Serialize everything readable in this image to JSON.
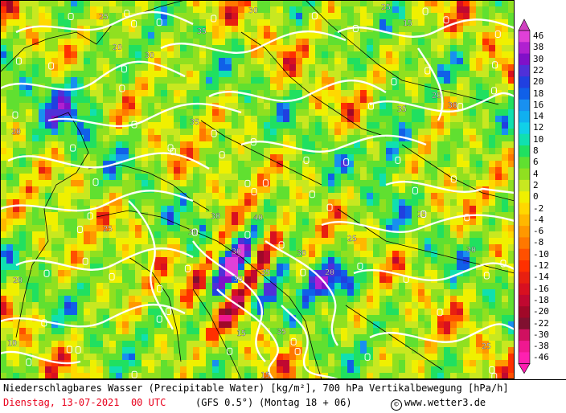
{
  "map": {
    "contour_labels": [
      "25",
      "20",
      "30",
      "35",
      "30",
      "25",
      "15",
      "20",
      "30",
      "35",
      "40",
      "30",
      "35",
      "30",
      "25",
      "20",
      "15",
      "10",
      "30",
      "35",
      "25",
      "30",
      "20",
      "25",
      "30",
      "35",
      "15",
      "20",
      "25",
      "30"
    ]
  },
  "legend": {
    "top_arrow_color": "#d040c0",
    "bottom_arrow_color": "#ff1cb0",
    "entries": [
      {
        "label": "46",
        "color": "#e040d8"
      },
      {
        "label": "38",
        "color": "#b020d0"
      },
      {
        "label": "30",
        "color": "#8010c8"
      },
      {
        "label": "22",
        "color": "#5030d8"
      },
      {
        "label": "20",
        "color": "#2040e0"
      },
      {
        "label": "18",
        "color": "#1060e8"
      },
      {
        "label": "16",
        "color": "#1890f0"
      },
      {
        "label": "14",
        "color": "#10b0f0"
      },
      {
        "label": "12",
        "color": "#10d0e8"
      },
      {
        "label": "10",
        "color": "#10e0b0"
      },
      {
        "label": "8",
        "color": "#20e060"
      },
      {
        "label": "6",
        "color": "#60e030"
      },
      {
        "label": "4",
        "color": "#90e020"
      },
      {
        "label": "2",
        "color": "#c8e820"
      },
      {
        "label": "0",
        "color": "#f0f000"
      },
      {
        "label": "-2",
        "color": "#ffd800"
      },
      {
        "label": "-4",
        "color": "#ffb800"
      },
      {
        "label": "-6",
        "color": "#ff9800"
      },
      {
        "label": "-8",
        "color": "#ff7800"
      },
      {
        "label": "-10",
        "color": "#ff5000"
      },
      {
        "label": "-12",
        "color": "#ff3000"
      },
      {
        "label": "-14",
        "color": "#e82010"
      },
      {
        "label": "-16",
        "color": "#d81020"
      },
      {
        "label": "-18",
        "color": "#c00830"
      },
      {
        "label": "-20",
        "color": "#a00828"
      },
      {
        "label": "-22",
        "color": "#801030"
      },
      {
        "label": "-30",
        "color": "#d01060"
      },
      {
        "label": "-38",
        "color": "#f01890"
      },
      {
        "label": "-46",
        "color": "#ff20b0"
      }
    ]
  },
  "footer": {
    "line1": "Niederschlagbares Wasser (Precipitable Water) [kg/m²], 700 hPa Vertikalbewegung [hPa/h]",
    "date": "Dienstag, 13-07-2021  00 UTC",
    "model": "(GFS 0.5°)",
    "lead": "(Montag 18 + 06)",
    "credit": "www.wetter3.de",
    "copyright_symbol": "©"
  }
}
